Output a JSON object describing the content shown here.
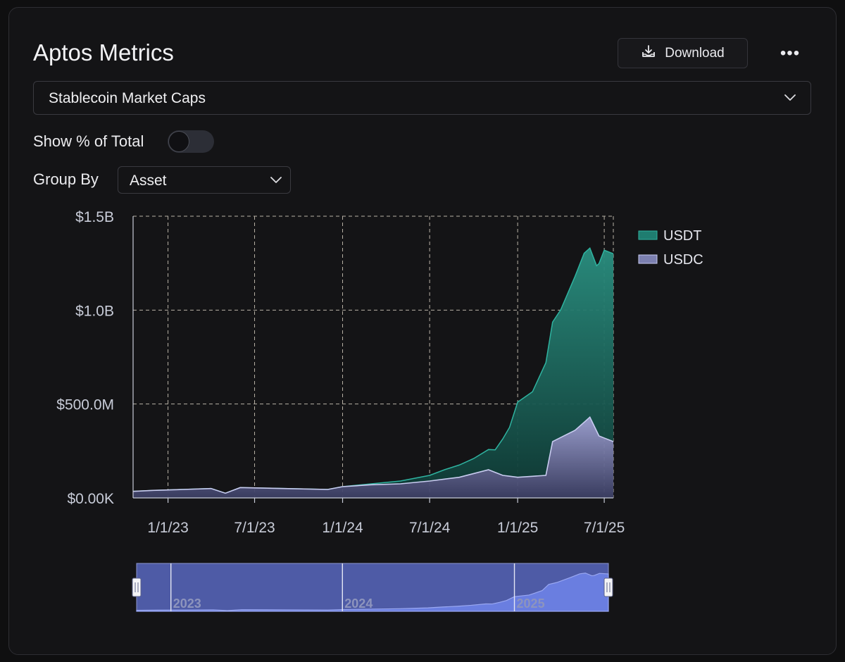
{
  "header": {
    "title": "Aptos Metrics",
    "download_label": "Download",
    "more_label": "•••"
  },
  "metric_select": {
    "value": "Stablecoin Market Caps"
  },
  "toggle": {
    "label": "Show % of Total",
    "on": false
  },
  "group_by": {
    "label": "Group By",
    "value": "Asset"
  },
  "colors": {
    "usdt": "#1f7d70",
    "usdc": "#7c80b0",
    "navigator_fill": "#4e5ba6",
    "navigator_area": "#6a7ee0"
  },
  "chart_data": {
    "type": "area",
    "stacked": true,
    "y_ticks": [
      "$0.00K",
      "$500.0M",
      "$1.0B",
      "$1.5B"
    ],
    "y_tick_values": [
      0,
      500000000,
      1000000000,
      1500000000
    ],
    "ylim": [
      0,
      1500000000
    ],
    "x_ticks": [
      "1/1/23",
      "7/1/23",
      "1/1/24",
      "7/1/24",
      "1/1/25",
      "7/1/25"
    ],
    "x_tick_dates": [
      "2023-01-01",
      "2023-07-01",
      "2024-01-01",
      "2024-07-01",
      "2025-01-01",
      "2025-07-01"
    ],
    "xlim": [
      "2022-10-20",
      "2025-07-20"
    ],
    "grid": true,
    "legend_position": "right",
    "series": [
      {
        "name": "USDT",
        "color": "#1f7d70",
        "points": [
          [
            "2022-10-20",
            0
          ],
          [
            "2024-01-01",
            0
          ],
          [
            "2024-03-01",
            5000000
          ],
          [
            "2024-05-01",
            15000000
          ],
          [
            "2024-07-01",
            30000000
          ],
          [
            "2024-08-01",
            50000000
          ],
          [
            "2024-10-01",
            80000000
          ],
          [
            "2024-11-15",
            120000000
          ],
          [
            "2024-12-15",
            260000000
          ],
          [
            "2025-01-01",
            400000000
          ],
          [
            "2025-02-01",
            450000000
          ],
          [
            "2025-03-01",
            600000000
          ],
          [
            "2025-04-01",
            680000000
          ],
          [
            "2025-05-01",
            820000000
          ],
          [
            "2025-05-20",
            900000000
          ],
          [
            "2025-06-01",
            900000000
          ],
          [
            "2025-06-15",
            880000000
          ],
          [
            "2025-07-01",
            1000000000
          ],
          [
            "2025-07-20",
            1000000000
          ]
        ]
      },
      {
        "name": "USDC",
        "color": "#7c80b0",
        "points": [
          [
            "2022-10-20",
            35000000
          ],
          [
            "2022-12-01",
            40000000
          ],
          [
            "2023-02-01",
            45000000
          ],
          [
            "2023-04-01",
            50000000
          ],
          [
            "2023-05-01",
            25000000
          ],
          [
            "2023-06-01",
            55000000
          ],
          [
            "2023-09-01",
            50000000
          ],
          [
            "2023-12-01",
            45000000
          ],
          [
            "2024-01-01",
            60000000
          ],
          [
            "2024-03-01",
            70000000
          ],
          [
            "2024-05-01",
            75000000
          ],
          [
            "2024-07-01",
            90000000
          ],
          [
            "2024-09-01",
            110000000
          ],
          [
            "2024-11-01",
            150000000
          ],
          [
            "2024-12-01",
            120000000
          ],
          [
            "2025-01-01",
            110000000
          ],
          [
            "2025-03-01",
            120000000
          ],
          [
            "2025-03-15",
            300000000
          ],
          [
            "2025-05-01",
            360000000
          ],
          [
            "2025-06-01",
            430000000
          ],
          [
            "2025-06-20",
            330000000
          ],
          [
            "2025-07-20",
            300000000
          ]
        ]
      }
    ],
    "navigator": {
      "year_labels": [
        "2023",
        "2024",
        "2025"
      ],
      "range": [
        "2022-10-20",
        "2025-07-20"
      ]
    }
  }
}
